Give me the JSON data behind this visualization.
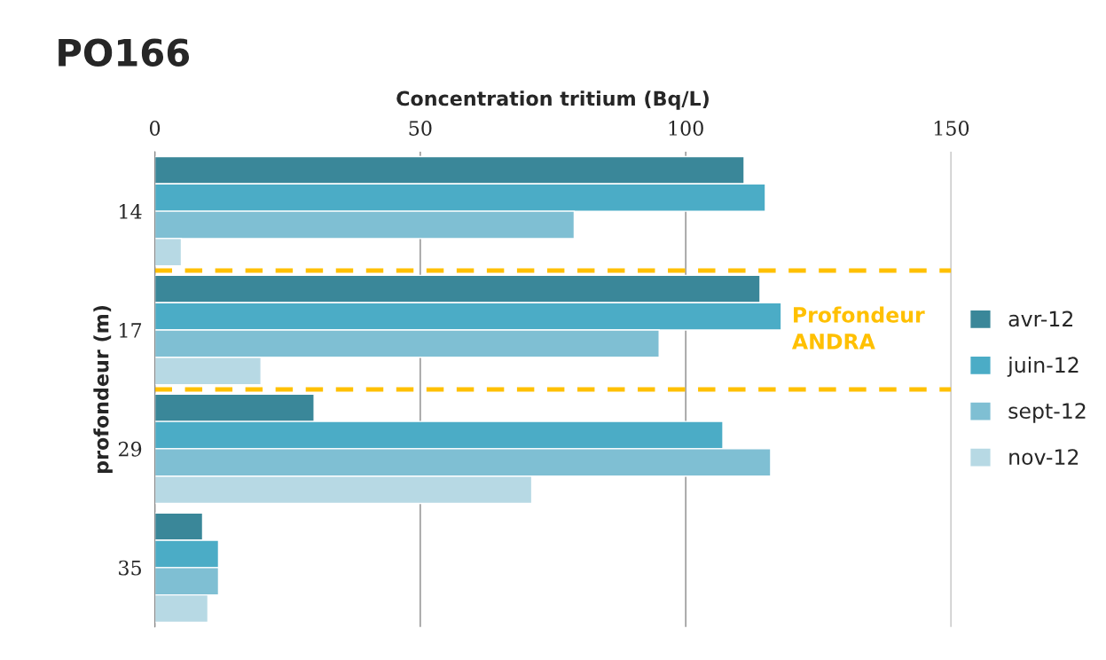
{
  "chart_data": {
    "type": "bar",
    "orientation": "horizontal",
    "title": "PO166",
    "xlabel": "Concentration tritium (Bq/L)",
    "ylabel": "profondeur (m)",
    "categories": [
      "14",
      "17",
      "29",
      "35"
    ],
    "series": [
      {
        "name": "avr-12",
        "color": "#3a8799",
        "values": [
          111,
          114,
          30,
          9
        ]
      },
      {
        "name": "juin-12",
        "color": "#4bacc6",
        "values": [
          115,
          118,
          107,
          12
        ]
      },
      {
        "name": "sept-12",
        "color": "#7fbfd3",
        "values": [
          79,
          95,
          116,
          12
        ]
      },
      {
        "name": "nov-12",
        "color": "#b7d9e4",
        "values": [
          5,
          20,
          71,
          10
        ]
      }
    ],
    "xlim": [
      0,
      150
    ],
    "xticks": [
      0,
      50,
      100,
      150
    ],
    "grid": "x",
    "legend": "right",
    "annotations": [
      "Profondeur\nANDRA"
    ]
  }
}
